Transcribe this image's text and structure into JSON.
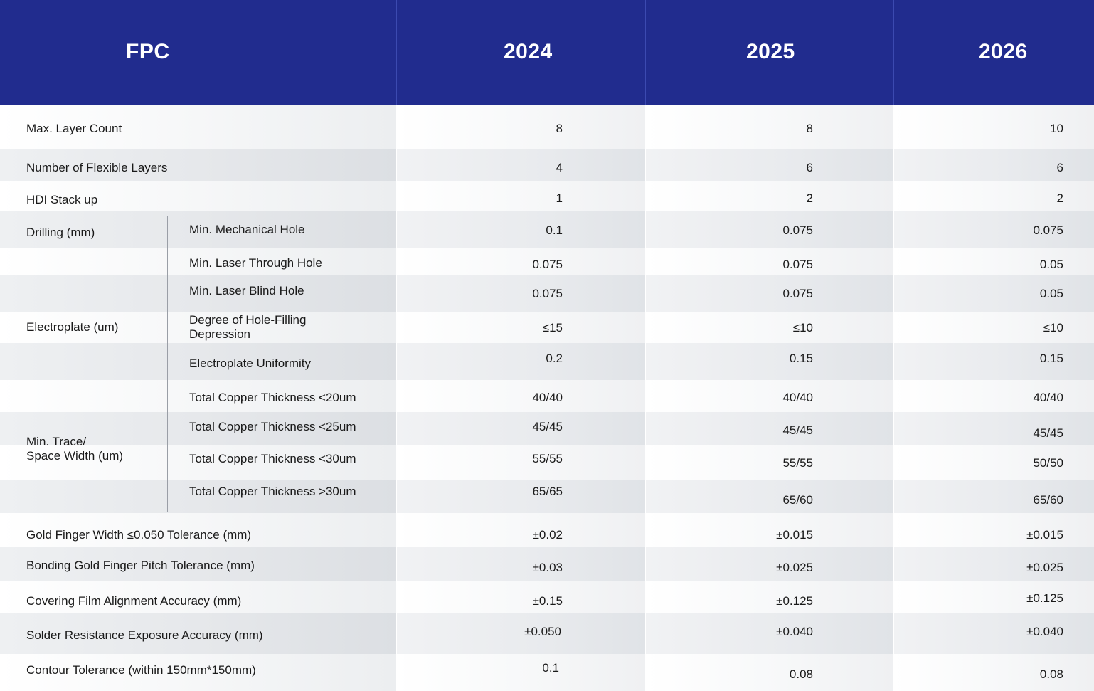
{
  "header": {
    "title": "FPC",
    "years": [
      "2024",
      "2025",
      "2026"
    ]
  },
  "rows": [
    {
      "label": "Max. Layer Count",
      "values": [
        "8",
        "8",
        "10"
      ]
    },
    {
      "label": "Number of Flexible Layers",
      "values": [
        "4",
        "6",
        "6"
      ]
    },
    {
      "label": "HDI Stack up",
      "values": [
        "1",
        "2",
        "2"
      ]
    },
    {
      "sub": "Min. Mechanical Hole",
      "values": [
        "0.1",
        "0.075",
        "0.075"
      ]
    },
    {
      "sub": "Min. Laser Through Hole",
      "values": [
        "0.075",
        "0.075",
        "0.05"
      ]
    },
    {
      "sub": "Min. Laser Blind Hole",
      "values": [
        "0.075",
        "0.075",
        "0.05"
      ]
    },
    {
      "sub": "Degree of Hole-Filling",
      "sub2": "Depression",
      "values": [
        "≤15",
        "≤10",
        "≤10"
      ]
    },
    {
      "sub": "Electroplate Uniformity",
      "values": [
        "0.2",
        "0.15",
        "0.15"
      ]
    },
    {
      "sub": "Total Copper Thickness <20um",
      "values": [
        "40/40",
        "40/40",
        "40/40"
      ]
    },
    {
      "sub": "Total Copper Thickness <25um",
      "values": [
        "45/45",
        "45/45",
        "45/45"
      ]
    },
    {
      "sub": "Total Copper Thickness <30um",
      "values": [
        "55/55",
        "55/55",
        "50/50"
      ]
    },
    {
      "sub": "Total Copper Thickness >30um",
      "values": [
        "65/65",
        "65/60",
        "65/60"
      ]
    },
    {
      "label": "Gold Finger Width ≤0.050 Tolerance (mm)",
      "values": [
        "±0.02",
        "±0.015",
        "±0.015"
      ]
    },
    {
      "label": "Bonding Gold Finger Pitch Tolerance (mm)",
      "values": [
        "±0.03",
        "±0.025",
        "±0.025"
      ]
    },
    {
      "label": "Covering Film Alignment Accuracy (mm)",
      "values": [
        "±0.15",
        "±0.125",
        "±0.125"
      ]
    },
    {
      "label": "Solder Resistance Exposure Accuracy (mm)",
      "values": [
        "±0.050",
        "±0.040",
        "±0.040"
      ]
    },
    {
      "label": "Contour Tolerance (within 150mm*150mm)",
      "values": [
        "0.1",
        "0.08",
        "0.08"
      ]
    }
  ],
  "groups": {
    "drilling": "Drilling (mm)",
    "electroplate": "Electroplate (um)",
    "trace_line1": "Min. Trace/",
    "trace_line2": "Space Width (um)"
  },
  "colors": {
    "header_bg": "#212c8e",
    "header_text": "#ffffff"
  }
}
